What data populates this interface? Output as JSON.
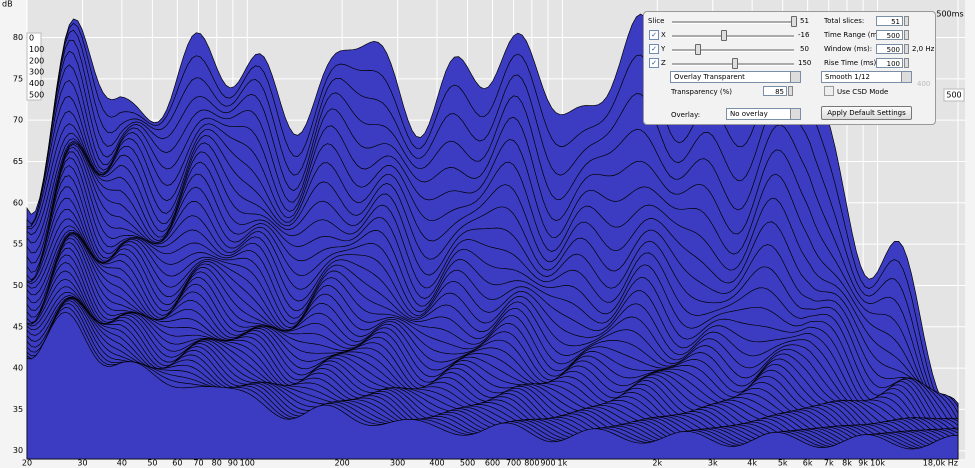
{
  "header": {
    "time_end": "500ms",
    "time_right": "500"
  },
  "chart_data": {
    "type": "waterfall",
    "y_label": "dB",
    "color": "#3c3cc2",
    "grid": true,
    "x_scale": "log",
    "ylim": [
      29,
      82
    ],
    "yticks": [
      30,
      35,
      40,
      45,
      50,
      55,
      60,
      65,
      70,
      75,
      80
    ],
    "xlim": [
      20,
      18000
    ],
    "xticks": [
      20,
      30,
      40,
      50,
      60,
      70,
      80,
      90,
      100,
      200,
      300,
      400,
      500,
      600,
      700,
      800,
      900,
      {
        "value": 1000,
        "label": "1k"
      },
      {
        "value": 2000,
        "label": "2k"
      },
      {
        "value": 3000,
        "label": "3k"
      },
      {
        "value": 4000,
        "label": "4k"
      },
      {
        "value": 5000,
        "label": "5k"
      },
      {
        "value": 6000,
        "label": "6k"
      },
      {
        "value": 7000,
        "label": "7k"
      },
      {
        "value": 8000,
        "label": "8k"
      },
      {
        "value": 9000,
        "label": "9k"
      },
      {
        "value": 10000,
        "label": "10k"
      },
      {
        "value": 18000,
        "label": "18,0k Hz"
      }
    ],
    "time_labels": [
      0,
      100,
      200,
      300,
      400,
      500
    ]
  },
  "panel": {
    "sliders": [
      {
        "label": "Slice",
        "value": 51
      },
      {
        "label": "X",
        "value": -16
      },
      {
        "label": "Y",
        "value": 50
      },
      {
        "label": "Z",
        "value": 150
      }
    ],
    "fields": [
      {
        "label": "Total slices:",
        "value": 51
      },
      {
        "label": "Time Range (ms):",
        "value": 500
      },
      {
        "label": "Window (ms):",
        "value": 500
      },
      {
        "label": "Rise Time (ms):",
        "value": 100
      }
    ],
    "window_hz": "2,0 Hz",
    "mode": "Overlay Transparent",
    "smoothing": "Smooth 1/12",
    "ghost": "400",
    "transparency_label": "Transparency (%)",
    "transparency": 85,
    "csd": "Use CSD Mode",
    "overlay_label": "Overlay:",
    "overlay": "No overlay",
    "button": "Apply Default Settings"
  }
}
